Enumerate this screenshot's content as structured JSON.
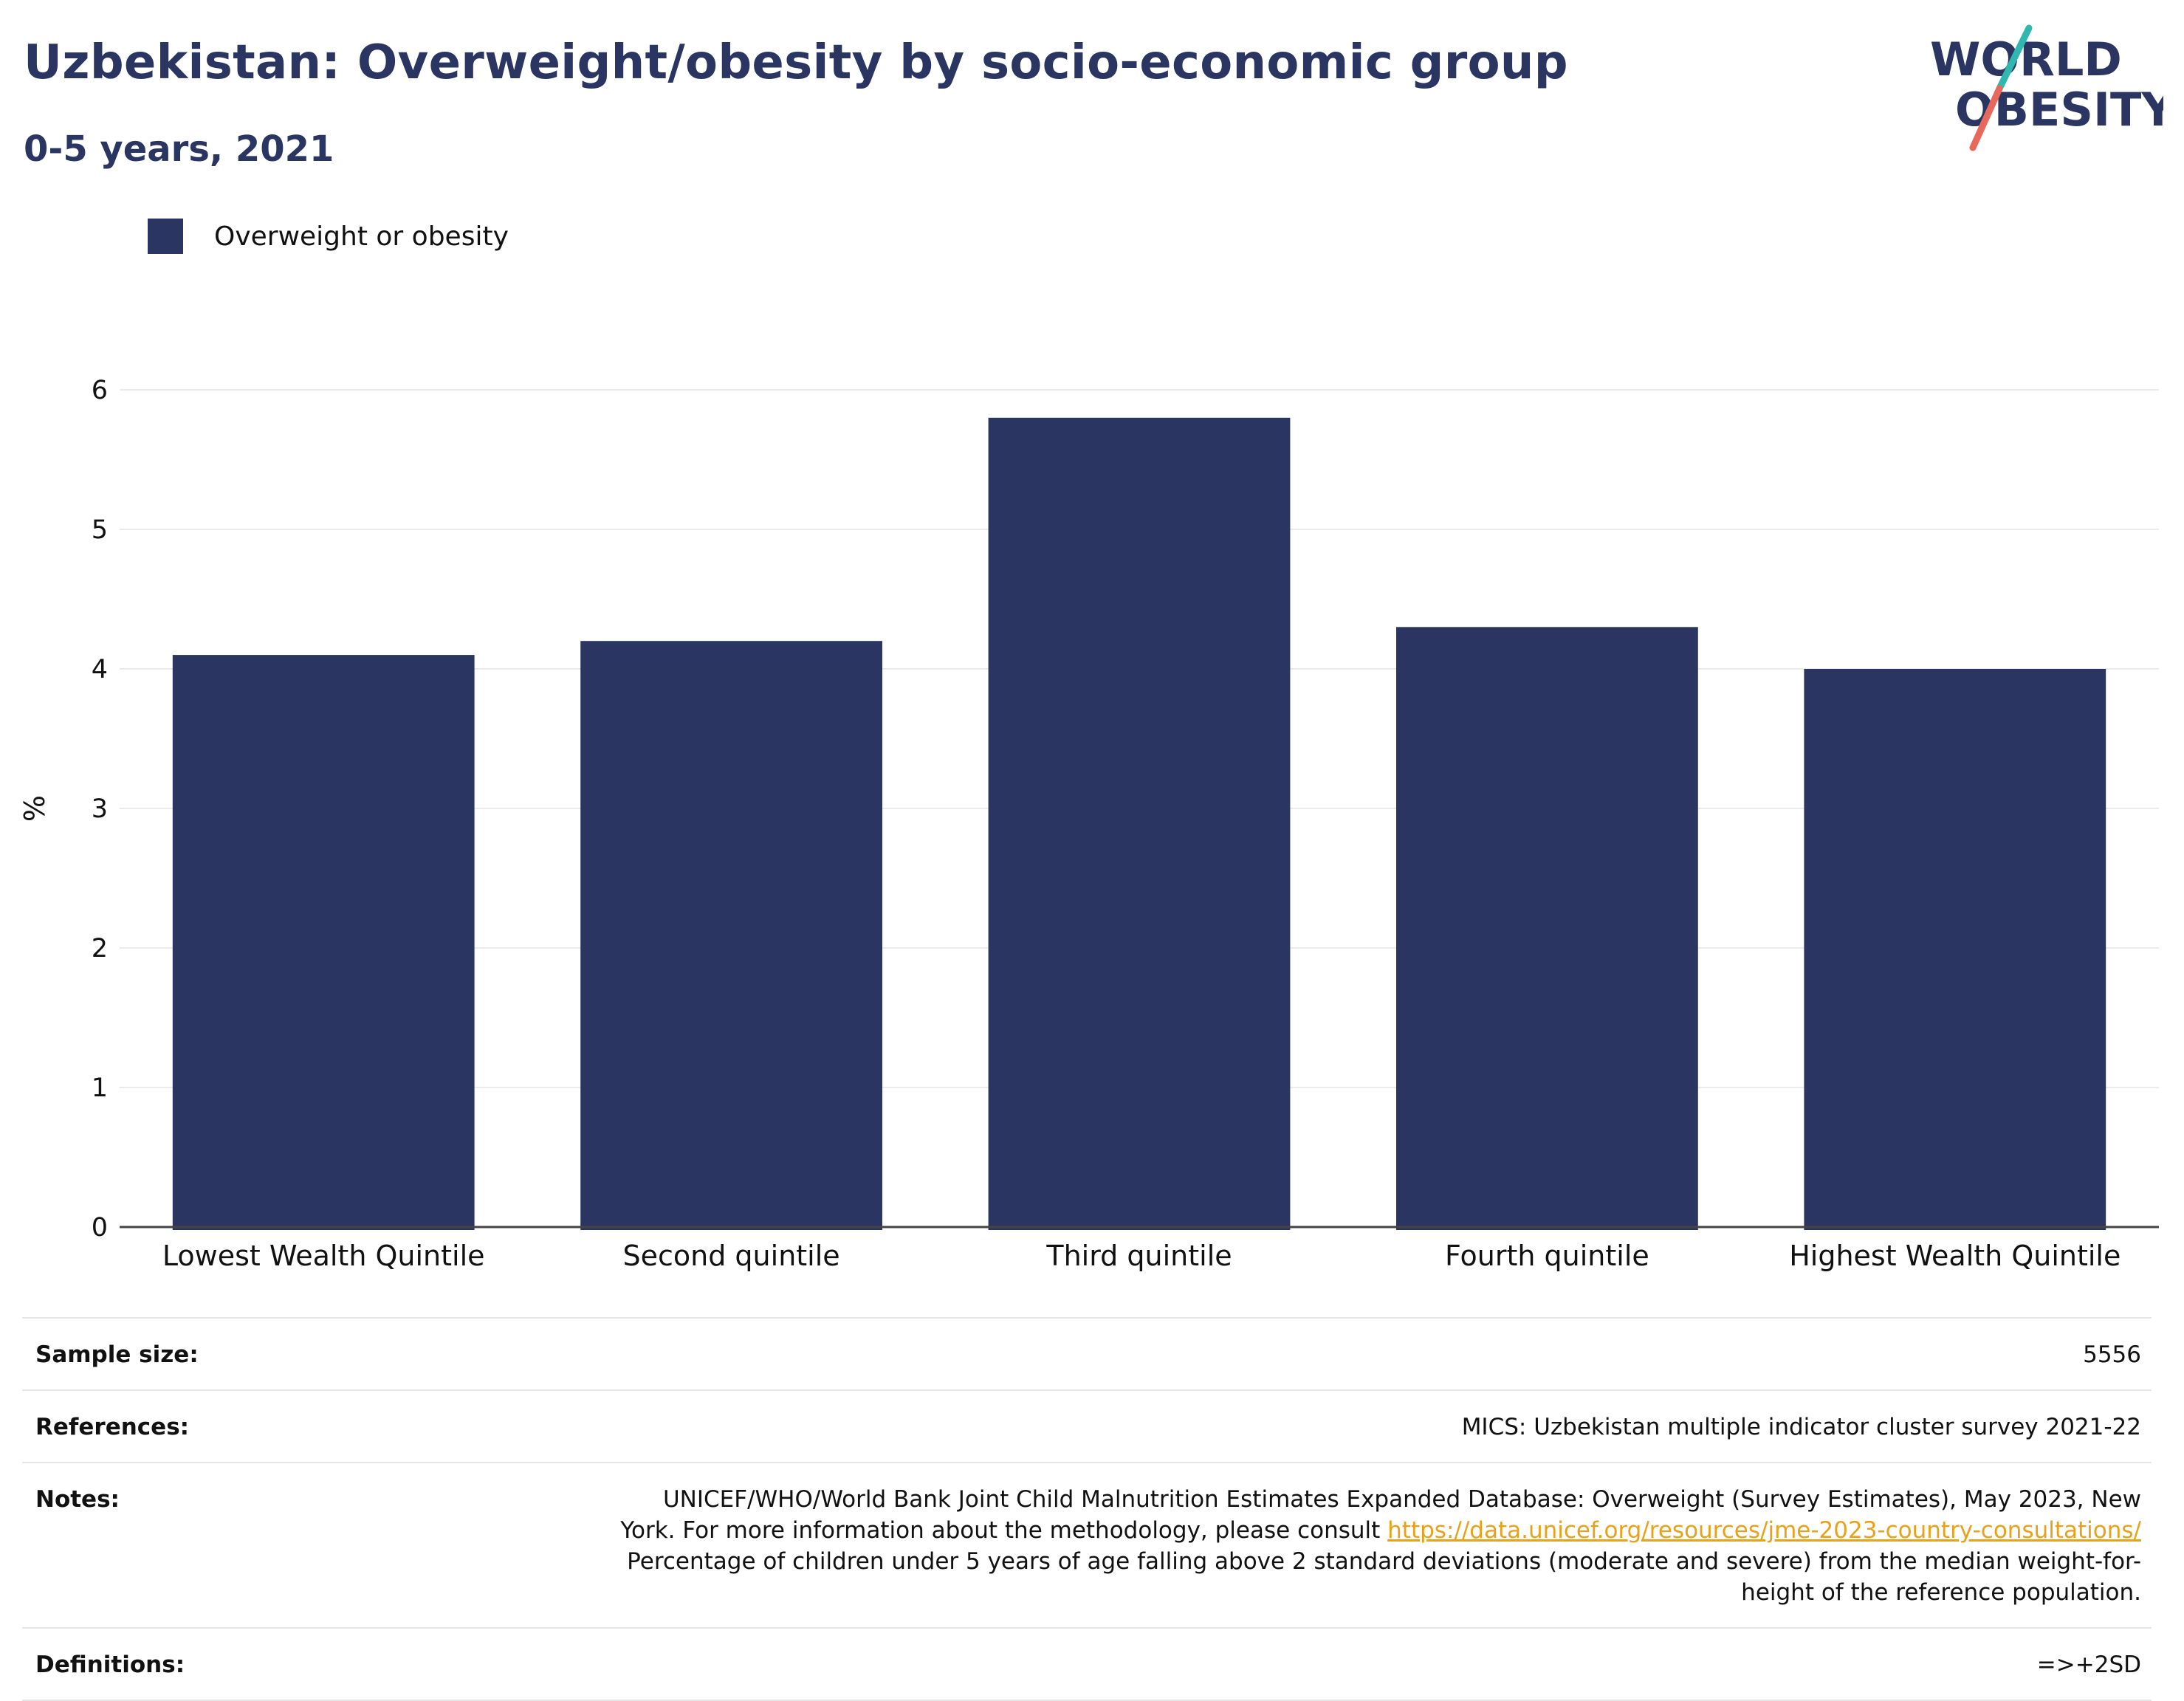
{
  "header": {
    "title": "Uzbekistan: Overweight/obesity by socio-economic group",
    "subtitle": "0-5 years, 2021"
  },
  "logo": {
    "line1": "WORLD",
    "line2": "OBESITY",
    "colors": {
      "text": "#2a3561",
      "slash_top": "#2fb7b0",
      "slash_bottom": "#e8685b"
    }
  },
  "legend": {
    "label": "Overweight or obesity",
    "color": "#2a3561"
  },
  "chart_data": {
    "type": "bar",
    "categories": [
      "Lowest Wealth Quintile",
      "Second quintile",
      "Third quintile",
      "Fourth quintile",
      "Highest Wealth Quintile"
    ],
    "series": [
      {
        "name": "Overweight or obesity",
        "values": [
          4.1,
          4.2,
          5.8,
          4.3,
          4.0
        ],
        "color": "#2a3561"
      }
    ],
    "title": "Uzbekistan: Overweight/obesity by socio-economic group",
    "subtitle": "0-5 years, 2021",
    "xlabel": "",
    "ylabel": "%",
    "ylim": [
      0,
      6
    ],
    "yticks": [
      "0",
      "1",
      "2",
      "3",
      "4",
      "5",
      "6"
    ],
    "grid": true,
    "legend_position": "top-left"
  },
  "info": {
    "sample_size": {
      "label": "Sample size:",
      "value": "5556"
    },
    "references": {
      "label": "References:",
      "value": "MICS: Uzbekistan multiple indicator cluster survey 2021-22"
    },
    "notes": {
      "label": "Notes:",
      "text_before": "UNICEF/WHO/World Bank Joint Child Malnutrition Estimates Expanded Database: Overweight (Survey Estimates), May 2023, New York. For more information about the methodology, please consult ",
      "link": "https://data.unicef.org/resources/jme-2023-country-consultations/",
      "text_after": " Percentage of children under 5 years of age falling above 2 standard deviations (moderate and severe) from the median weight-for-height of the reference population."
    },
    "definitions": {
      "label": "Definitions:",
      "value": "=>+2SD"
    }
  }
}
